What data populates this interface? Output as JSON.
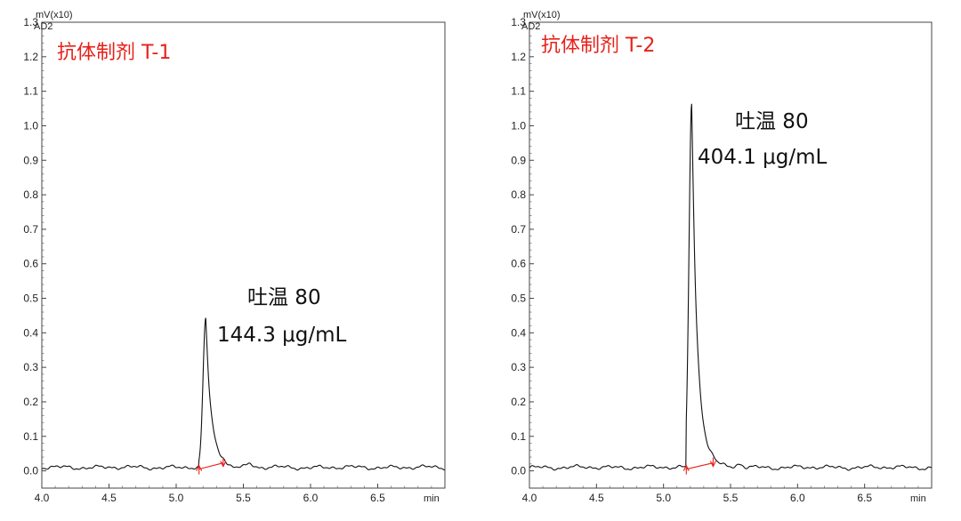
{
  "chart_data": [
    {
      "type": "line",
      "title": "抗体制剂 T-1",
      "title_color": "#e8201a",
      "signal_label": "AD2",
      "y_unit": "mV(x10)",
      "x_unit": "min",
      "xlim": [
        4.0,
        7.0
      ],
      "ylim": [
        -0.05,
        1.3
      ],
      "x_ticks": [
        "4.0",
        "4.5",
        "5.0",
        "5.5",
        "6.0",
        "6.5"
      ],
      "y_ticks": [
        "0.0",
        "0.1",
        "0.2",
        "0.3",
        "0.4",
        "0.5",
        "0.6",
        "0.7",
        "0.8",
        "0.9",
        "1.0",
        "1.1",
        "1.2",
        "1.3"
      ],
      "baseline": 0.01,
      "peak": {
        "rt": 5.22,
        "height": 0.44,
        "start": 5.17,
        "end": 5.35
      },
      "annotation": {
        "name": "吐温 80",
        "value": "144.3  μg/mL"
      },
      "integration_color": "#e8201a"
    },
    {
      "type": "line",
      "title": "抗体制剂 T-2",
      "title_color": "#e8201a",
      "signal_label": "AD2",
      "y_unit": "mV(x10)",
      "x_unit": "min",
      "xlim": [
        4.0,
        7.0
      ],
      "ylim": [
        -0.05,
        1.3
      ],
      "x_ticks": [
        "4.0",
        "4.5",
        "5.0",
        "5.5",
        "6.0",
        "6.5"
      ],
      "y_ticks": [
        "0.0",
        "0.1",
        "0.2",
        "0.3",
        "0.4",
        "0.5",
        "0.6",
        "0.7",
        "0.8",
        "0.9",
        "1.0",
        "1.1",
        "1.2",
        "1.3"
      ],
      "baseline": 0.01,
      "peak": {
        "rt": 5.21,
        "height": 1.06,
        "start": 5.17,
        "end": 5.37
      },
      "annotation": {
        "name": "吐温 80",
        "value": "404.1  μg/mL"
      },
      "integration_color": "#e8201a"
    }
  ]
}
